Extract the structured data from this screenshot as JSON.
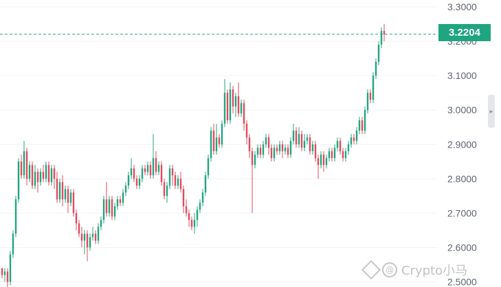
{
  "chart_data": {
    "type": "candlestick",
    "y_axis": {
      "ticks": [
        "3.3000",
        "3.2000",
        "3.1000",
        "3.0000",
        "2.9000",
        "2.8000",
        "2.7000",
        "2.6000",
        "2.5000"
      ],
      "ylim": [
        2.485,
        3.32
      ]
    },
    "grid": true,
    "current_price": "3.2204",
    "colors": {
      "up": "#1fa57f",
      "down": "#e04a5c",
      "badge": "#1fa57f"
    },
    "candles": [
      [
        2.54,
        2.52,
        2.54,
        2.51
      ],
      [
        2.52,
        2.53,
        2.54,
        2.5
      ],
      [
        2.53,
        2.5,
        2.54,
        2.48
      ],
      [
        2.5,
        2.58,
        2.59,
        2.49
      ],
      [
        2.58,
        2.64,
        2.65,
        2.57
      ],
      [
        2.64,
        2.74,
        2.75,
        2.63
      ],
      [
        2.74,
        2.85,
        2.86,
        2.73
      ],
      [
        2.85,
        2.81,
        2.87,
        2.8
      ],
      [
        2.81,
        2.88,
        2.91,
        2.8
      ],
      [
        2.88,
        2.8,
        2.89,
        2.78
      ],
      [
        2.8,
        2.84,
        2.85,
        2.79
      ],
      [
        2.84,
        2.78,
        2.85,
        2.77
      ],
      [
        2.78,
        2.82,
        2.84,
        2.77
      ],
      [
        2.82,
        2.79,
        2.83,
        2.76
      ],
      [
        2.79,
        2.82,
        2.83,
        2.78
      ],
      [
        2.82,
        2.8,
        2.84,
        2.79
      ],
      [
        2.8,
        2.84,
        2.85,
        2.79
      ],
      [
        2.84,
        2.79,
        2.85,
        2.78
      ],
      [
        2.79,
        2.83,
        2.84,
        2.78
      ],
      [
        2.83,
        2.8,
        2.84,
        2.77
      ],
      [
        2.8,
        2.74,
        2.82,
        2.73
      ],
      [
        2.74,
        2.79,
        2.8,
        2.73
      ],
      [
        2.79,
        2.74,
        2.81,
        2.72
      ],
      [
        2.74,
        2.77,
        2.78,
        2.73
      ],
      [
        2.77,
        2.73,
        2.78,
        2.7
      ],
      [
        2.73,
        2.76,
        2.77,
        2.72
      ],
      [
        2.76,
        2.7,
        2.77,
        2.69
      ],
      [
        2.7,
        2.67,
        2.71,
        2.65
      ],
      [
        2.67,
        2.64,
        2.68,
        2.63
      ],
      [
        2.64,
        2.62,
        2.66,
        2.6
      ],
      [
        2.62,
        2.64,
        2.65,
        2.58
      ],
      [
        2.64,
        2.6,
        2.65,
        2.56
      ],
      [
        2.6,
        2.63,
        2.64,
        2.59
      ],
      [
        2.63,
        2.64,
        2.66,
        2.62
      ],
      [
        2.64,
        2.62,
        2.65,
        2.61
      ],
      [
        2.62,
        2.66,
        2.67,
        2.61
      ],
      [
        2.66,
        2.68,
        2.69,
        2.65
      ],
      [
        2.68,
        2.74,
        2.75,
        2.67
      ],
      [
        2.74,
        2.7,
        2.79,
        2.69
      ],
      [
        2.7,
        2.74,
        2.75,
        2.69
      ],
      [
        2.74,
        2.69,
        2.75,
        2.68
      ],
      [
        2.69,
        2.72,
        2.73,
        2.68
      ],
      [
        2.72,
        2.74,
        2.75,
        2.71
      ],
      [
        2.74,
        2.73,
        2.75,
        2.72
      ],
      [
        2.73,
        2.76,
        2.77,
        2.72
      ],
      [
        2.76,
        2.78,
        2.79,
        2.75
      ],
      [
        2.78,
        2.81,
        2.82,
        2.77
      ],
      [
        2.81,
        2.83,
        2.86,
        2.8
      ],
      [
        2.83,
        2.8,
        2.84,
        2.79
      ],
      [
        2.8,
        2.78,
        2.81,
        2.77
      ],
      [
        2.78,
        2.8,
        2.81,
        2.77
      ],
      [
        2.8,
        2.83,
        2.84,
        2.79
      ],
      [
        2.83,
        2.82,
        2.84,
        2.81
      ],
      [
        2.82,
        2.84,
        2.85,
        2.81
      ],
      [
        2.84,
        2.81,
        2.85,
        2.8
      ],
      [
        2.81,
        2.86,
        2.93,
        2.8
      ],
      [
        2.86,
        2.82,
        2.88,
        2.81
      ],
      [
        2.82,
        2.84,
        2.85,
        2.81
      ],
      [
        2.84,
        2.79,
        2.85,
        2.78
      ],
      [
        2.79,
        2.75,
        2.8,
        2.74
      ],
      [
        2.75,
        2.78,
        2.79,
        2.73
      ],
      [
        2.78,
        2.83,
        2.84,
        2.77
      ],
      [
        2.83,
        2.81,
        2.84,
        2.78
      ],
      [
        2.81,
        2.78,
        2.82,
        2.77
      ],
      [
        2.78,
        2.8,
        2.81,
        2.77
      ],
      [
        2.8,
        2.77,
        2.82,
        2.76
      ],
      [
        2.77,
        2.72,
        2.78,
        2.7
      ],
      [
        2.72,
        2.7,
        2.74,
        2.69
      ],
      [
        2.7,
        2.68,
        2.71,
        2.66
      ],
      [
        2.68,
        2.66,
        2.69,
        2.65
      ],
      [
        2.66,
        2.68,
        2.7,
        2.64
      ],
      [
        2.68,
        2.71,
        2.72,
        2.66
      ],
      [
        2.71,
        2.73,
        2.74,
        2.7
      ],
      [
        2.73,
        2.76,
        2.77,
        2.72
      ],
      [
        2.76,
        2.81,
        2.82,
        2.75
      ],
      [
        2.81,
        2.86,
        2.87,
        2.8
      ],
      [
        2.86,
        2.94,
        2.95,
        2.85
      ],
      [
        2.94,
        2.88,
        2.96,
        2.87
      ],
      [
        2.88,
        2.92,
        2.96,
        2.87
      ],
      [
        2.92,
        2.9,
        2.93,
        2.89
      ],
      [
        2.9,
        2.96,
        2.97,
        2.89
      ],
      [
        2.96,
        3.05,
        3.09,
        2.95
      ],
      [
        3.05,
        2.97,
        3.06,
        2.96
      ],
      [
        2.97,
        3.06,
        3.08,
        2.96
      ],
      [
        3.06,
        3.01,
        3.07,
        2.99
      ],
      [
        3.01,
        3.04,
        3.05,
        2.98
      ],
      [
        3.04,
        2.99,
        3.08,
        2.98
      ],
      [
        2.99,
        3.02,
        3.03,
        2.98
      ],
      [
        3.02,
        2.96,
        3.03,
        2.94
      ],
      [
        2.96,
        2.92,
        2.97,
        2.9
      ],
      [
        2.92,
        2.88,
        2.93,
        2.86
      ],
      [
        2.88,
        2.84,
        2.89,
        2.7
      ],
      [
        2.84,
        2.87,
        2.88,
        2.83
      ],
      [
        2.87,
        2.89,
        2.9,
        2.86
      ],
      [
        2.89,
        2.87,
        2.9,
        2.86
      ],
      [
        2.87,
        2.9,
        2.91,
        2.86
      ],
      [
        2.9,
        2.92,
        2.93,
        2.89
      ],
      [
        2.92,
        2.89,
        2.93,
        2.87
      ],
      [
        2.89,
        2.86,
        2.9,
        2.85
      ],
      [
        2.86,
        2.89,
        2.9,
        2.85
      ],
      [
        2.89,
        2.88,
        2.9,
        2.87
      ],
      [
        2.88,
        2.9,
        2.91,
        2.87
      ],
      [
        2.9,
        2.88,
        2.91,
        2.86
      ],
      [
        2.88,
        2.89,
        2.9,
        2.87
      ],
      [
        2.89,
        2.87,
        2.9,
        2.86
      ],
      [
        2.87,
        2.91,
        2.92,
        2.86
      ],
      [
        2.91,
        2.94,
        2.96,
        2.9
      ],
      [
        2.94,
        2.9,
        2.95,
        2.89
      ],
      [
        2.9,
        2.93,
        2.95,
        2.89
      ],
      [
        2.93,
        2.89,
        2.94,
        2.88
      ],
      [
        2.89,
        2.91,
        2.93,
        2.88
      ],
      [
        2.91,
        2.92,
        2.93,
        2.9
      ],
      [
        2.92,
        2.88,
        2.93,
        2.87
      ],
      [
        2.88,
        2.9,
        2.91,
        2.87
      ],
      [
        2.9,
        2.86,
        2.91,
        2.85
      ],
      [
        2.86,
        2.84,
        2.87,
        2.8
      ],
      [
        2.84,
        2.87,
        2.88,
        2.83
      ],
      [
        2.87,
        2.84,
        2.88,
        2.82
      ],
      [
        2.84,
        2.86,
        2.87,
        2.83
      ],
      [
        2.86,
        2.88,
        2.89,
        2.85
      ],
      [
        2.88,
        2.86,
        2.89,
        2.85
      ],
      [
        2.86,
        2.89,
        2.9,
        2.85
      ],
      [
        2.89,
        2.91,
        2.92,
        2.88
      ],
      [
        2.91,
        2.88,
        2.92,
        2.87
      ],
      [
        2.88,
        2.86,
        2.89,
        2.85
      ],
      [
        2.86,
        2.88,
        2.89,
        2.85
      ],
      [
        2.88,
        2.9,
        2.91,
        2.87
      ],
      [
        2.9,
        2.92,
        2.93,
        2.89
      ],
      [
        2.92,
        2.91,
        2.93,
        2.9
      ],
      [
        2.91,
        2.94,
        2.95,
        2.9
      ],
      [
        2.94,
        2.97,
        2.98,
        2.93
      ],
      [
        2.97,
        2.94,
        2.98,
        2.93
      ],
      [
        2.94,
        3.0,
        3.01,
        2.93
      ],
      [
        3.0,
        3.05,
        3.06,
        2.99
      ],
      [
        3.05,
        3.03,
        3.06,
        3.02
      ],
      [
        3.03,
        3.1,
        3.11,
        3.02
      ],
      [
        3.1,
        3.14,
        3.15,
        3.09
      ],
      [
        3.14,
        3.19,
        3.2,
        3.13
      ],
      [
        3.19,
        3.23,
        3.24,
        3.18
      ],
      [
        3.23,
        3.22,
        3.25,
        3.2
      ]
    ]
  },
  "watermark": {
    "text": "Crypto小马"
  },
  "ui": {
    "side_handle_glyph": "▸"
  }
}
